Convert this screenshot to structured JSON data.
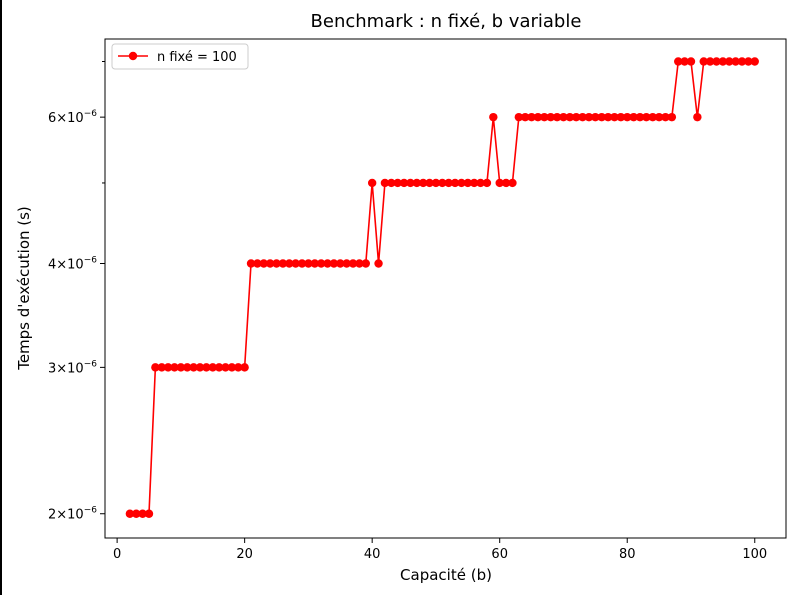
{
  "chart_data": {
    "type": "line",
    "title": "Benchmark : n fixé, b variable",
    "xlabel": "Capacité (b)",
    "ylabel": "Temps d'exécution (s)",
    "xlim": [
      -1.9,
      104.9
    ],
    "ylim": [
      1.87e-06,
      7.45e-06
    ],
    "yscale": "log",
    "xticks": [
      0,
      20,
      40,
      60,
      80,
      100
    ],
    "xtick_labels": [
      "0",
      "20",
      "40",
      "60",
      "80",
      "100"
    ],
    "yticks": [
      2e-06,
      3e-06,
      4e-06,
      6e-06
    ],
    "ytick_labels": [
      {
        "base": "2",
        "exp": "−6"
      },
      {
        "base": "3",
        "exp": "−6"
      },
      {
        "base": "4",
        "exp": "−6"
      },
      {
        "base": "6",
        "exp": "−6"
      }
    ],
    "yminor_ticks": [
      5e-06,
      7e-06
    ],
    "legend": {
      "position": "upper-left"
    },
    "grid": false,
    "series": [
      {
        "name": "n fixé = 100",
        "color": "#ff0000",
        "marker": "circle",
        "x": [
          2,
          3,
          4,
          5,
          6,
          7,
          8,
          9,
          10,
          11,
          12,
          13,
          14,
          15,
          16,
          17,
          18,
          19,
          20,
          21,
          22,
          23,
          24,
          25,
          26,
          27,
          28,
          29,
          30,
          31,
          32,
          33,
          34,
          35,
          36,
          37,
          38,
          39,
          40,
          41,
          42,
          43,
          44,
          45,
          46,
          47,
          48,
          49,
          50,
          51,
          52,
          53,
          54,
          55,
          56,
          57,
          58,
          59,
          60,
          61,
          62,
          63,
          64,
          65,
          66,
          67,
          68,
          69,
          70,
          71,
          72,
          73,
          74,
          75,
          76,
          77,
          78,
          79,
          80,
          81,
          82,
          83,
          84,
          85,
          86,
          87,
          88,
          89,
          90,
          91,
          92,
          93,
          94,
          95,
          96,
          97,
          98,
          99,
          100
        ],
        "y": [
          2e-06,
          2e-06,
          2e-06,
          2e-06,
          3e-06,
          3e-06,
          3e-06,
          3e-06,
          3e-06,
          3e-06,
          3e-06,
          3e-06,
          3e-06,
          3e-06,
          3e-06,
          3e-06,
          3e-06,
          3e-06,
          3e-06,
          4e-06,
          4e-06,
          4e-06,
          4e-06,
          4e-06,
          4e-06,
          4e-06,
          4e-06,
          4e-06,
          4e-06,
          4e-06,
          4e-06,
          4e-06,
          4e-06,
          4e-06,
          4e-06,
          4e-06,
          4e-06,
          4e-06,
          5e-06,
          4e-06,
          5e-06,
          5e-06,
          5e-06,
          5e-06,
          5e-06,
          5e-06,
          5e-06,
          5e-06,
          5e-06,
          5e-06,
          5e-06,
          5e-06,
          5e-06,
          5e-06,
          5e-06,
          5e-06,
          5e-06,
          6e-06,
          5e-06,
          5e-06,
          5e-06,
          6e-06,
          6e-06,
          6e-06,
          6e-06,
          6e-06,
          6e-06,
          6e-06,
          6e-06,
          6e-06,
          6e-06,
          6e-06,
          6e-06,
          6e-06,
          6e-06,
          6e-06,
          6e-06,
          6e-06,
          6e-06,
          6e-06,
          6e-06,
          6e-06,
          6e-06,
          6e-06,
          6e-06,
          6e-06,
          7e-06,
          7e-06,
          7e-06,
          6e-06,
          7e-06,
          7e-06,
          7e-06,
          7e-06,
          7e-06,
          7e-06,
          7e-06,
          7e-06,
          7e-06
        ]
      }
    ]
  }
}
